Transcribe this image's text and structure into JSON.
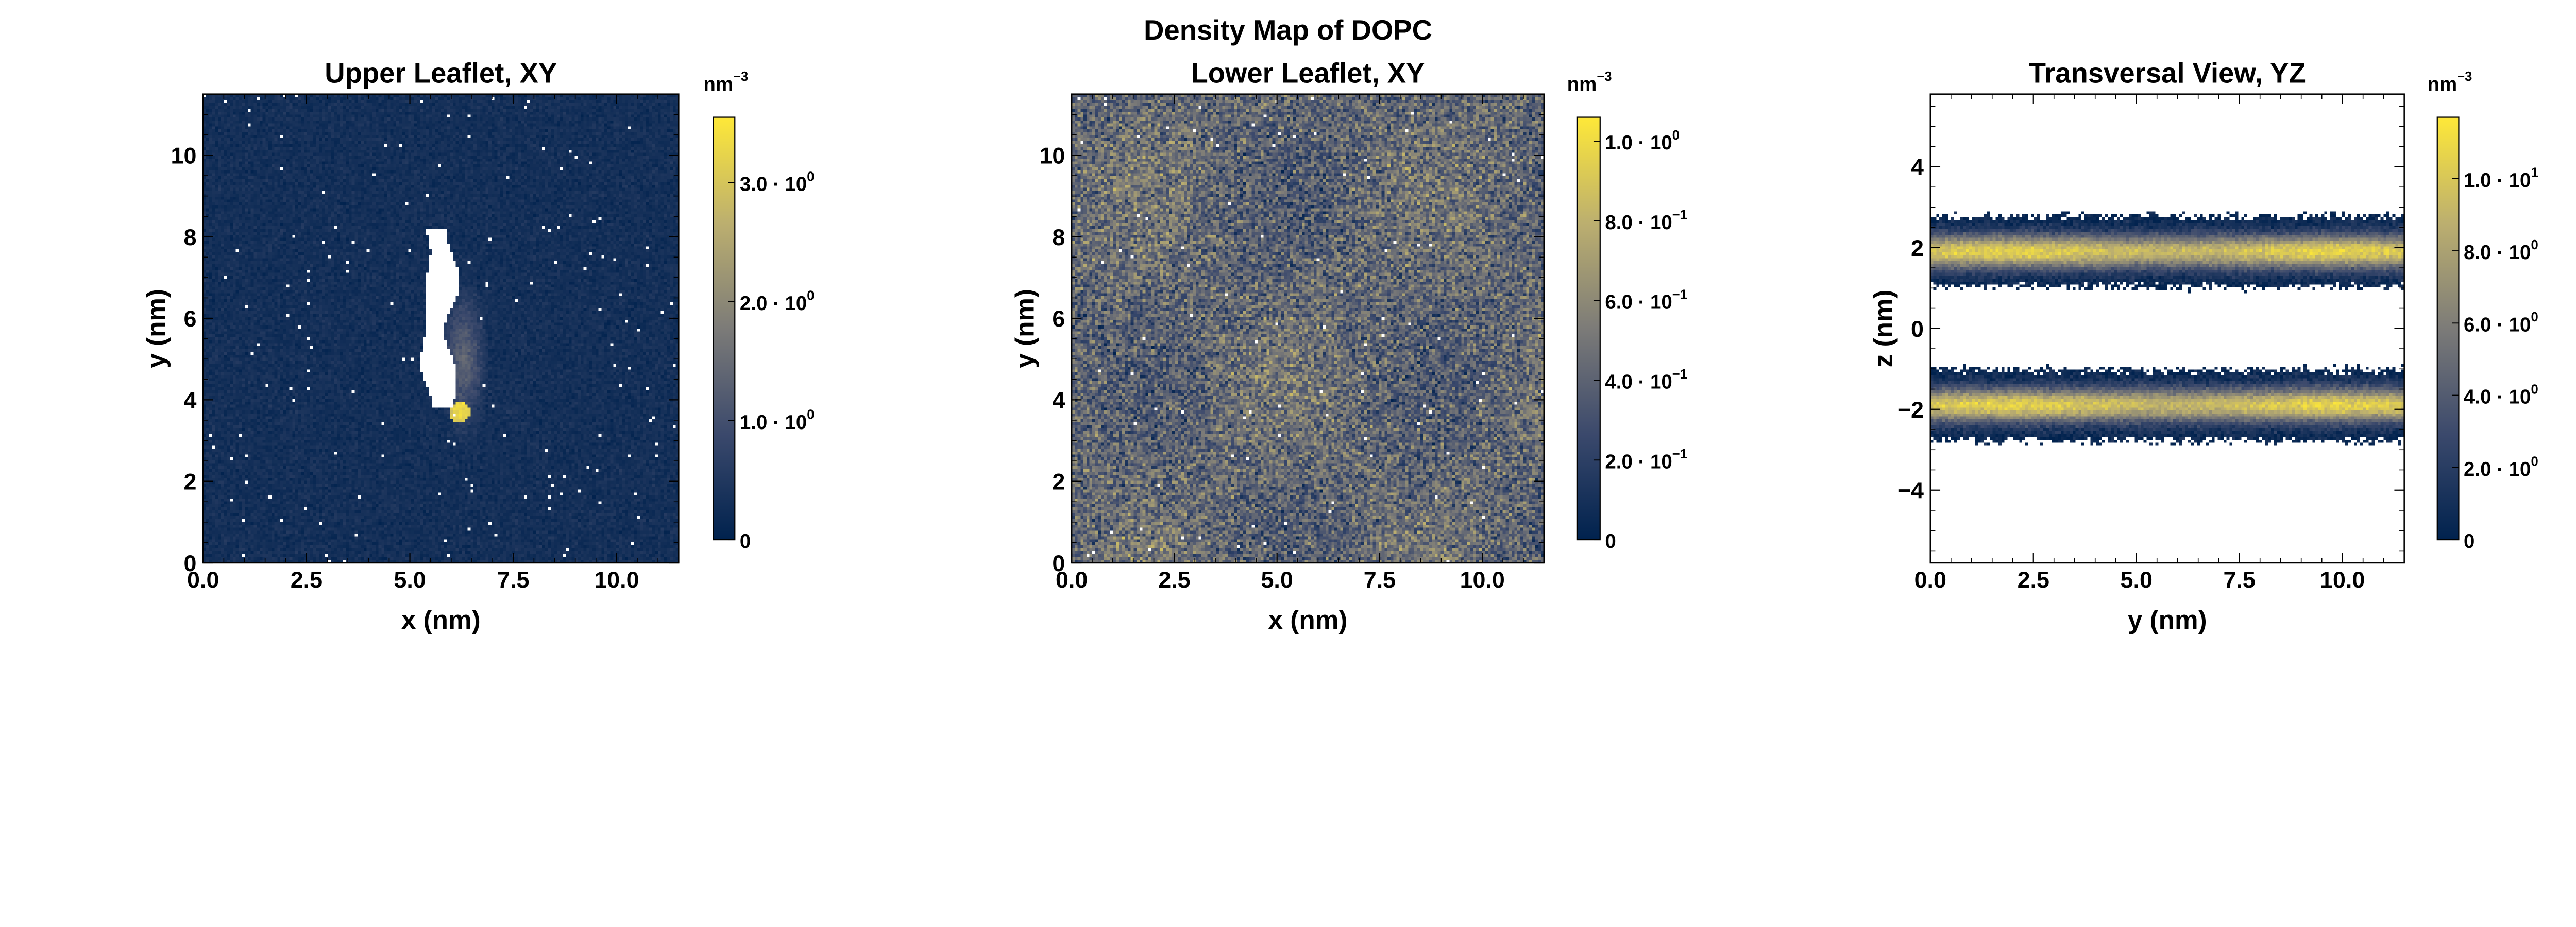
{
  "figure_title": "Density Map of DOPC",
  "chart_data": [
    {
      "type": "heatmap",
      "title": "Upper Leaflet, XY",
      "xlabel": "x (nm)",
      "ylabel": "y (nm)",
      "xlim": [
        0,
        11.5
      ],
      "ylim": [
        0,
        11.5
      ],
      "xticks": [
        0,
        2.5,
        5,
        7.5,
        10
      ],
      "xtick_labels": [
        "0.0",
        "2.5",
        "5.0",
        "7.5",
        "10.0"
      ],
      "yticks": [
        0,
        2,
        4,
        6,
        8,
        10
      ],
      "ytick_labels": [
        "0",
        "2",
        "4",
        "6",
        "8",
        "10"
      ],
      "colorbar": {
        "unit": "nm",
        "unit_exp": "−3",
        "range": [
          0,
          3.55
        ],
        "ticks": [
          0,
          1,
          2,
          3
        ],
        "tick_labels": [
          [
            "0",
            ""
          ],
          [
            "1.0 · 10",
            "0"
          ],
          [
            "2.0 · 10",
            "0"
          ],
          [
            "3.0 · 10",
            "0"
          ]
        ]
      },
      "pattern": "upper"
    },
    {
      "type": "heatmap",
      "title": "Lower Leaflet, XY",
      "xlabel": "x (nm)",
      "ylabel": "y (nm)",
      "xlim": [
        0,
        11.5
      ],
      "ylim": [
        0,
        11.5
      ],
      "xticks": [
        0,
        2.5,
        5,
        7.5,
        10
      ],
      "xtick_labels": [
        "0.0",
        "2.5",
        "5.0",
        "7.5",
        "10.0"
      ],
      "yticks": [
        0,
        2,
        4,
        6,
        8,
        10
      ],
      "ytick_labels": [
        "0",
        "2",
        "4",
        "6",
        "8",
        "10"
      ],
      "colorbar": {
        "unit": "nm",
        "unit_exp": "−3",
        "range": [
          0,
          1.06
        ],
        "ticks": [
          0,
          0.2,
          0.4,
          0.6,
          0.8,
          1.0
        ],
        "tick_labels": [
          [
            "0",
            ""
          ],
          [
            "2.0 · 10",
            "−1"
          ],
          [
            "4.0 · 10",
            "−1"
          ],
          [
            "6.0 · 10",
            "−1"
          ],
          [
            "8.0 · 10",
            "−1"
          ],
          [
            "1.0 · 10",
            "0"
          ]
        ]
      },
      "pattern": "lower"
    },
    {
      "type": "heatmap",
      "title": "Transversal View, YZ",
      "xlabel": "y (nm)",
      "ylabel": "z (nm)",
      "xlim": [
        0,
        11.5
      ],
      "ylim": [
        -5.8,
        5.8
      ],
      "xticks": [
        0,
        2.5,
        5,
        7.5,
        10
      ],
      "xtick_labels": [
        "0.0",
        "2.5",
        "5.0",
        "7.5",
        "10.0"
      ],
      "yticks": [
        -4,
        -2,
        0,
        2,
        4
      ],
      "ytick_labels": [
        "−4",
        "−2",
        "0",
        "2",
        "4"
      ],
      "colorbar": {
        "unit": "nm",
        "unit_exp": "−3",
        "range": [
          0,
          11.7
        ],
        "ticks": [
          0,
          2,
          4,
          6,
          8,
          10
        ],
        "tick_labels": [
          [
            "0",
            ""
          ],
          [
            "2.0 · 10",
            "0"
          ],
          [
            "4.0 · 10",
            "0"
          ],
          [
            "6.0 · 10",
            "0"
          ],
          [
            "8.0 · 10",
            "0"
          ],
          [
            "1.0 · 10",
            "1"
          ]
        ]
      },
      "pattern": "transversal",
      "band_centers": [
        1.9,
        -1.9
      ]
    }
  ],
  "colormap": [
    "#00224e",
    "#3b496c",
    "#7c7b78",
    "#bcaf6f",
    "#fee838"
  ]
}
